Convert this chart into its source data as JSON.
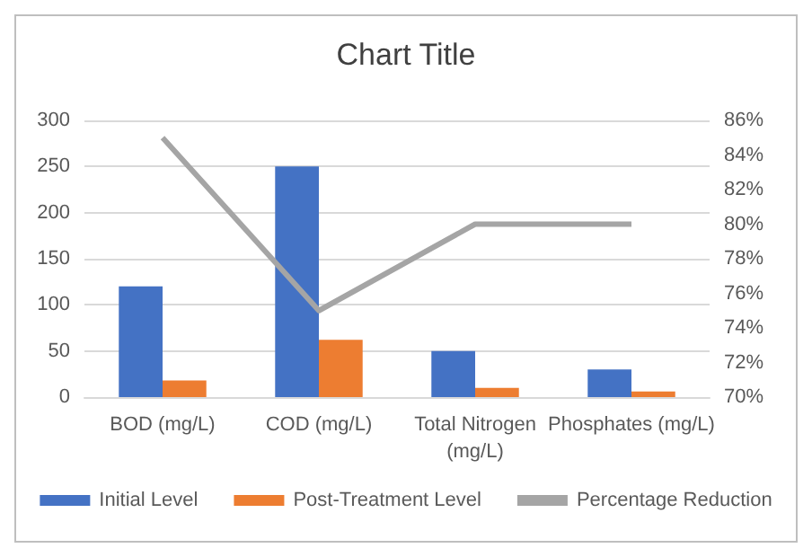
{
  "chart_data": {
    "type": "bar",
    "title": "Chart Title",
    "categories": [
      "BOD (mg/L)",
      "COD (mg/L)",
      "Total Nitrogen\n(mg/L)",
      "Phosphates (mg/L)"
    ],
    "series": [
      {
        "name": "Initial Level",
        "color": "#4472c4",
        "values": [
          120,
          250,
          50,
          30
        ]
      },
      {
        "name": "Post-Treatment Level",
        "color": "#ed7d31",
        "values": [
          18,
          62,
          10,
          6
        ]
      },
      {
        "name": "Percentage Reduction",
        "color": "#a5a5a5",
        "type": "line",
        "axis": "y2",
        "marker": "none",
        "values": [
          85,
          75,
          80,
          80
        ]
      }
    ],
    "ylim": [
      0,
      300
    ],
    "yticks": [
      0,
      50,
      100,
      150,
      200,
      250,
      300
    ],
    "y2lim": [
      70,
      86
    ],
    "y2ticks": [
      {
        "value": 70,
        "label": "70%"
      },
      {
        "value": 72,
        "label": "72%"
      },
      {
        "value": 74,
        "label": "74%"
      },
      {
        "value": 76,
        "label": "76%"
      },
      {
        "value": 78,
        "label": "78%"
      },
      {
        "value": 80,
        "label": "80%"
      },
      {
        "value": 82,
        "label": "82%"
      },
      {
        "value": 84,
        "label": "84%"
      },
      {
        "value": 86,
        "label": "86%"
      }
    ],
    "grid": "y",
    "legend": "bottom"
  }
}
